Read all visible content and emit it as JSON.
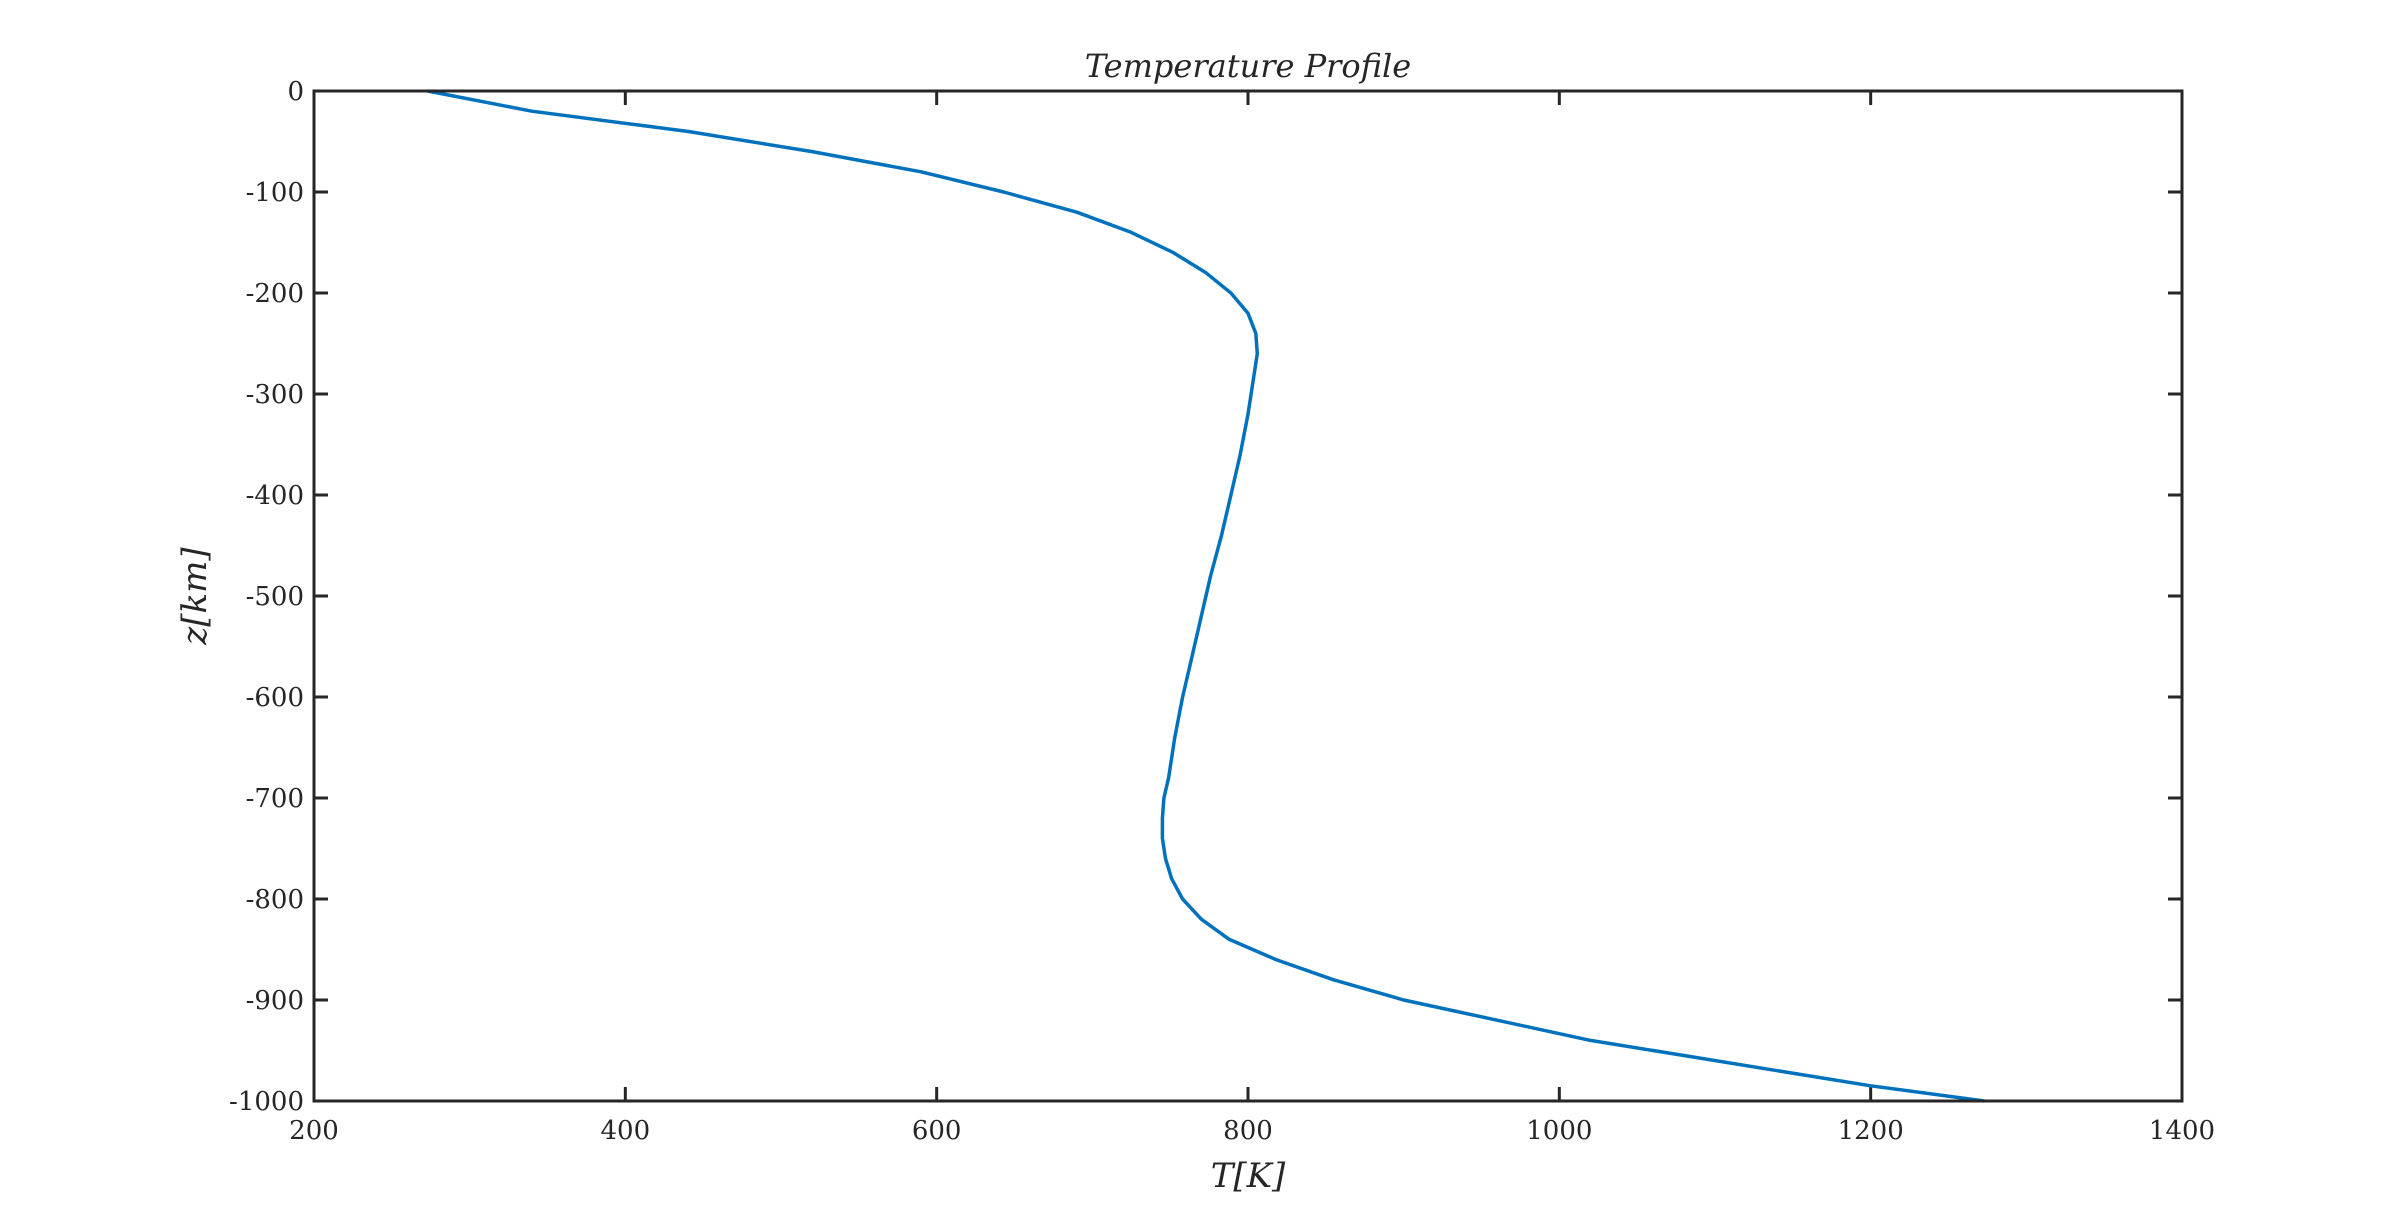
{
  "chart_data": {
    "type": "line",
    "title": "Temperature Profile",
    "xlabel": "T[K]",
    "ylabel": "z[km]",
    "xlim": [
      200,
      1400
    ],
    "ylim": [
      -1000,
      0
    ],
    "xticks": [
      200,
      400,
      600,
      800,
      1000,
      1200,
      1400
    ],
    "yticks": [
      0,
      -100,
      -200,
      -300,
      -400,
      -500,
      -600,
      -700,
      -800,
      -900,
      -1000
    ],
    "grid": false,
    "legend": "none",
    "colors": {
      "line": "#0072bd",
      "axes": "#262626"
    },
    "series": [
      {
        "x": [
          273,
          340,
          440,
          520,
          590,
          643,
          690,
          725,
          752,
          773,
          789,
          800,
          805,
          806,
          804,
          800,
          795,
          789,
          783,
          776,
          770,
          764,
          758,
          753,
          749,
          746,
          745,
          745,
          747,
          751,
          758,
          770,
          788,
          818,
          855,
          900,
          960,
          1020,
          1080,
          1140,
          1200,
          1273
        ],
        "y": [
          0,
          -20,
          -40,
          -60,
          -80,
          -100,
          -120,
          -140,
          -160,
          -180,
          -200,
          -220,
          -240,
          -260,
          -280,
          -320,
          -360,
          -400,
          -440,
          -480,
          -520,
          -560,
          -600,
          -640,
          -680,
          -700,
          -720,
          -740,
          -760,
          -780,
          -800,
          -820,
          -840,
          -860,
          -880,
          -900,
          -920,
          -940,
          -955,
          -970,
          -985,
          -1000
        ]
      }
    ]
  }
}
